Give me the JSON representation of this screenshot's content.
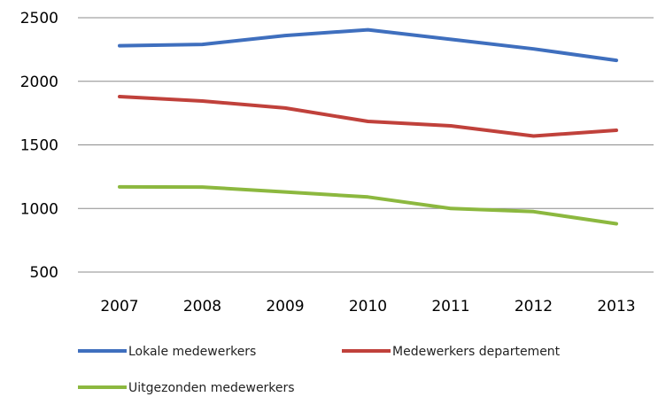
{
  "chart_data": {
    "type": "line",
    "categories": [
      "2007",
      "2008",
      "2009",
      "2010",
      "2011",
      "2012",
      "2013"
    ],
    "ylim": [
      500,
      2500
    ],
    "yticks": [
      500,
      1000,
      1500,
      2000,
      2500
    ],
    "grid": true,
    "legend_placement": "bottom",
    "series": [
      {
        "name": "Lokale medewerkers",
        "color": "#3f6fbe",
        "values": [
          2280,
          2290,
          2360,
          2405,
          2330,
          2255,
          2165
        ]
      },
      {
        "name": "Medewerkers departement",
        "color": "#c0413b",
        "values": [
          1880,
          1845,
          1790,
          1685,
          1650,
          1570,
          1615
        ]
      },
      {
        "name": "Uitgezonden medewerkers",
        "color": "#8cb83f",
        "values": [
          1170,
          1168,
          1130,
          1090,
          1000,
          975,
          880
        ]
      }
    ]
  }
}
